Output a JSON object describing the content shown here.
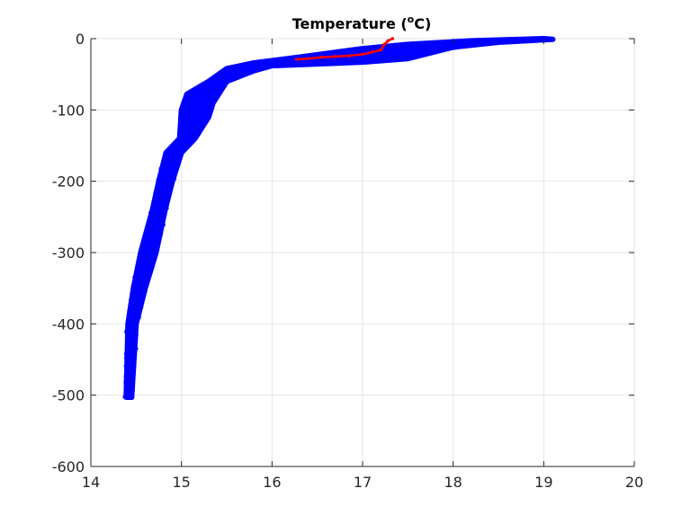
{
  "chart_data": {
    "type": "scatter",
    "title_main": "Temperature (",
    "title_sup": "o",
    "title_unit": "C)",
    "xlabel": "",
    "ylabel": "",
    "xlim": [
      14,
      20
    ],
    "ylim": [
      -600,
      0
    ],
    "xticks": [
      "14",
      "15",
      "16",
      "17",
      "18",
      "19",
      "20"
    ],
    "yticks": [
      "0",
      "-100",
      "-200",
      "-300",
      "-400",
      "-500",
      "-600"
    ],
    "grid": true,
    "legend": "none",
    "series": [
      {
        "color": "#0000ff",
        "marker": "dot",
        "profile_left": [
          {
            "x": 14.39,
            "y": -503
          },
          {
            "x": 14.41,
            "y": -400
          },
          {
            "x": 14.47,
            "y": -350
          },
          {
            "x": 14.55,
            "y": -300
          },
          {
            "x": 14.68,
            "y": -240
          },
          {
            "x": 14.75,
            "y": -200
          },
          {
            "x": 14.83,
            "y": -160
          },
          {
            "x": 14.98,
            "y": -140
          },
          {
            "x": 15.0,
            "y": -100
          },
          {
            "x": 15.06,
            "y": -78
          },
          {
            "x": 15.3,
            "y": -60
          },
          {
            "x": 15.5,
            "y": -42
          },
          {
            "x": 15.8,
            "y": -34
          },
          {
            "x": 16.3,
            "y": -26
          },
          {
            "x": 17.0,
            "y": -14
          },
          {
            "x": 17.5,
            "y": -8
          },
          {
            "x": 18.2,
            "y": -3
          },
          {
            "x": 19.0,
            "y": 0
          }
        ],
        "profile_right": [
          {
            "x": 14.45,
            "y": -503
          },
          {
            "x": 14.5,
            "y": -400
          },
          {
            "x": 14.6,
            "y": -350
          },
          {
            "x": 14.72,
            "y": -300
          },
          {
            "x": 14.82,
            "y": -240
          },
          {
            "x": 14.9,
            "y": -200
          },
          {
            "x": 15.0,
            "y": -160
          },
          {
            "x": 15.15,
            "y": -140
          },
          {
            "x": 15.3,
            "y": -110
          },
          {
            "x": 15.35,
            "y": -90
          },
          {
            "x": 15.5,
            "y": -60
          },
          {
            "x": 15.8,
            "y": -45
          },
          {
            "x": 16.0,
            "y": -38
          },
          {
            "x": 17.0,
            "y": -33
          },
          {
            "x": 17.5,
            "y": -28
          },
          {
            "x": 18.0,
            "y": -12
          },
          {
            "x": 18.5,
            "y": -5
          },
          {
            "x": 19.1,
            "y": -1
          }
        ]
      },
      {
        "color": "#ff0000",
        "marker": "dot",
        "points": [
          {
            "x": 16.27,
            "y": -29
          },
          {
            "x": 16.4,
            "y": -28
          },
          {
            "x": 16.55,
            "y": -26
          },
          {
            "x": 16.7,
            "y": -25
          },
          {
            "x": 16.85,
            "y": -24
          },
          {
            "x": 17.0,
            "y": -22
          },
          {
            "x": 17.1,
            "y": -19
          },
          {
            "x": 17.2,
            "y": -16
          },
          {
            "x": 17.24,
            "y": -8
          },
          {
            "x": 17.28,
            "y": -3
          },
          {
            "x": 17.33,
            "y": 0
          }
        ]
      }
    ]
  }
}
